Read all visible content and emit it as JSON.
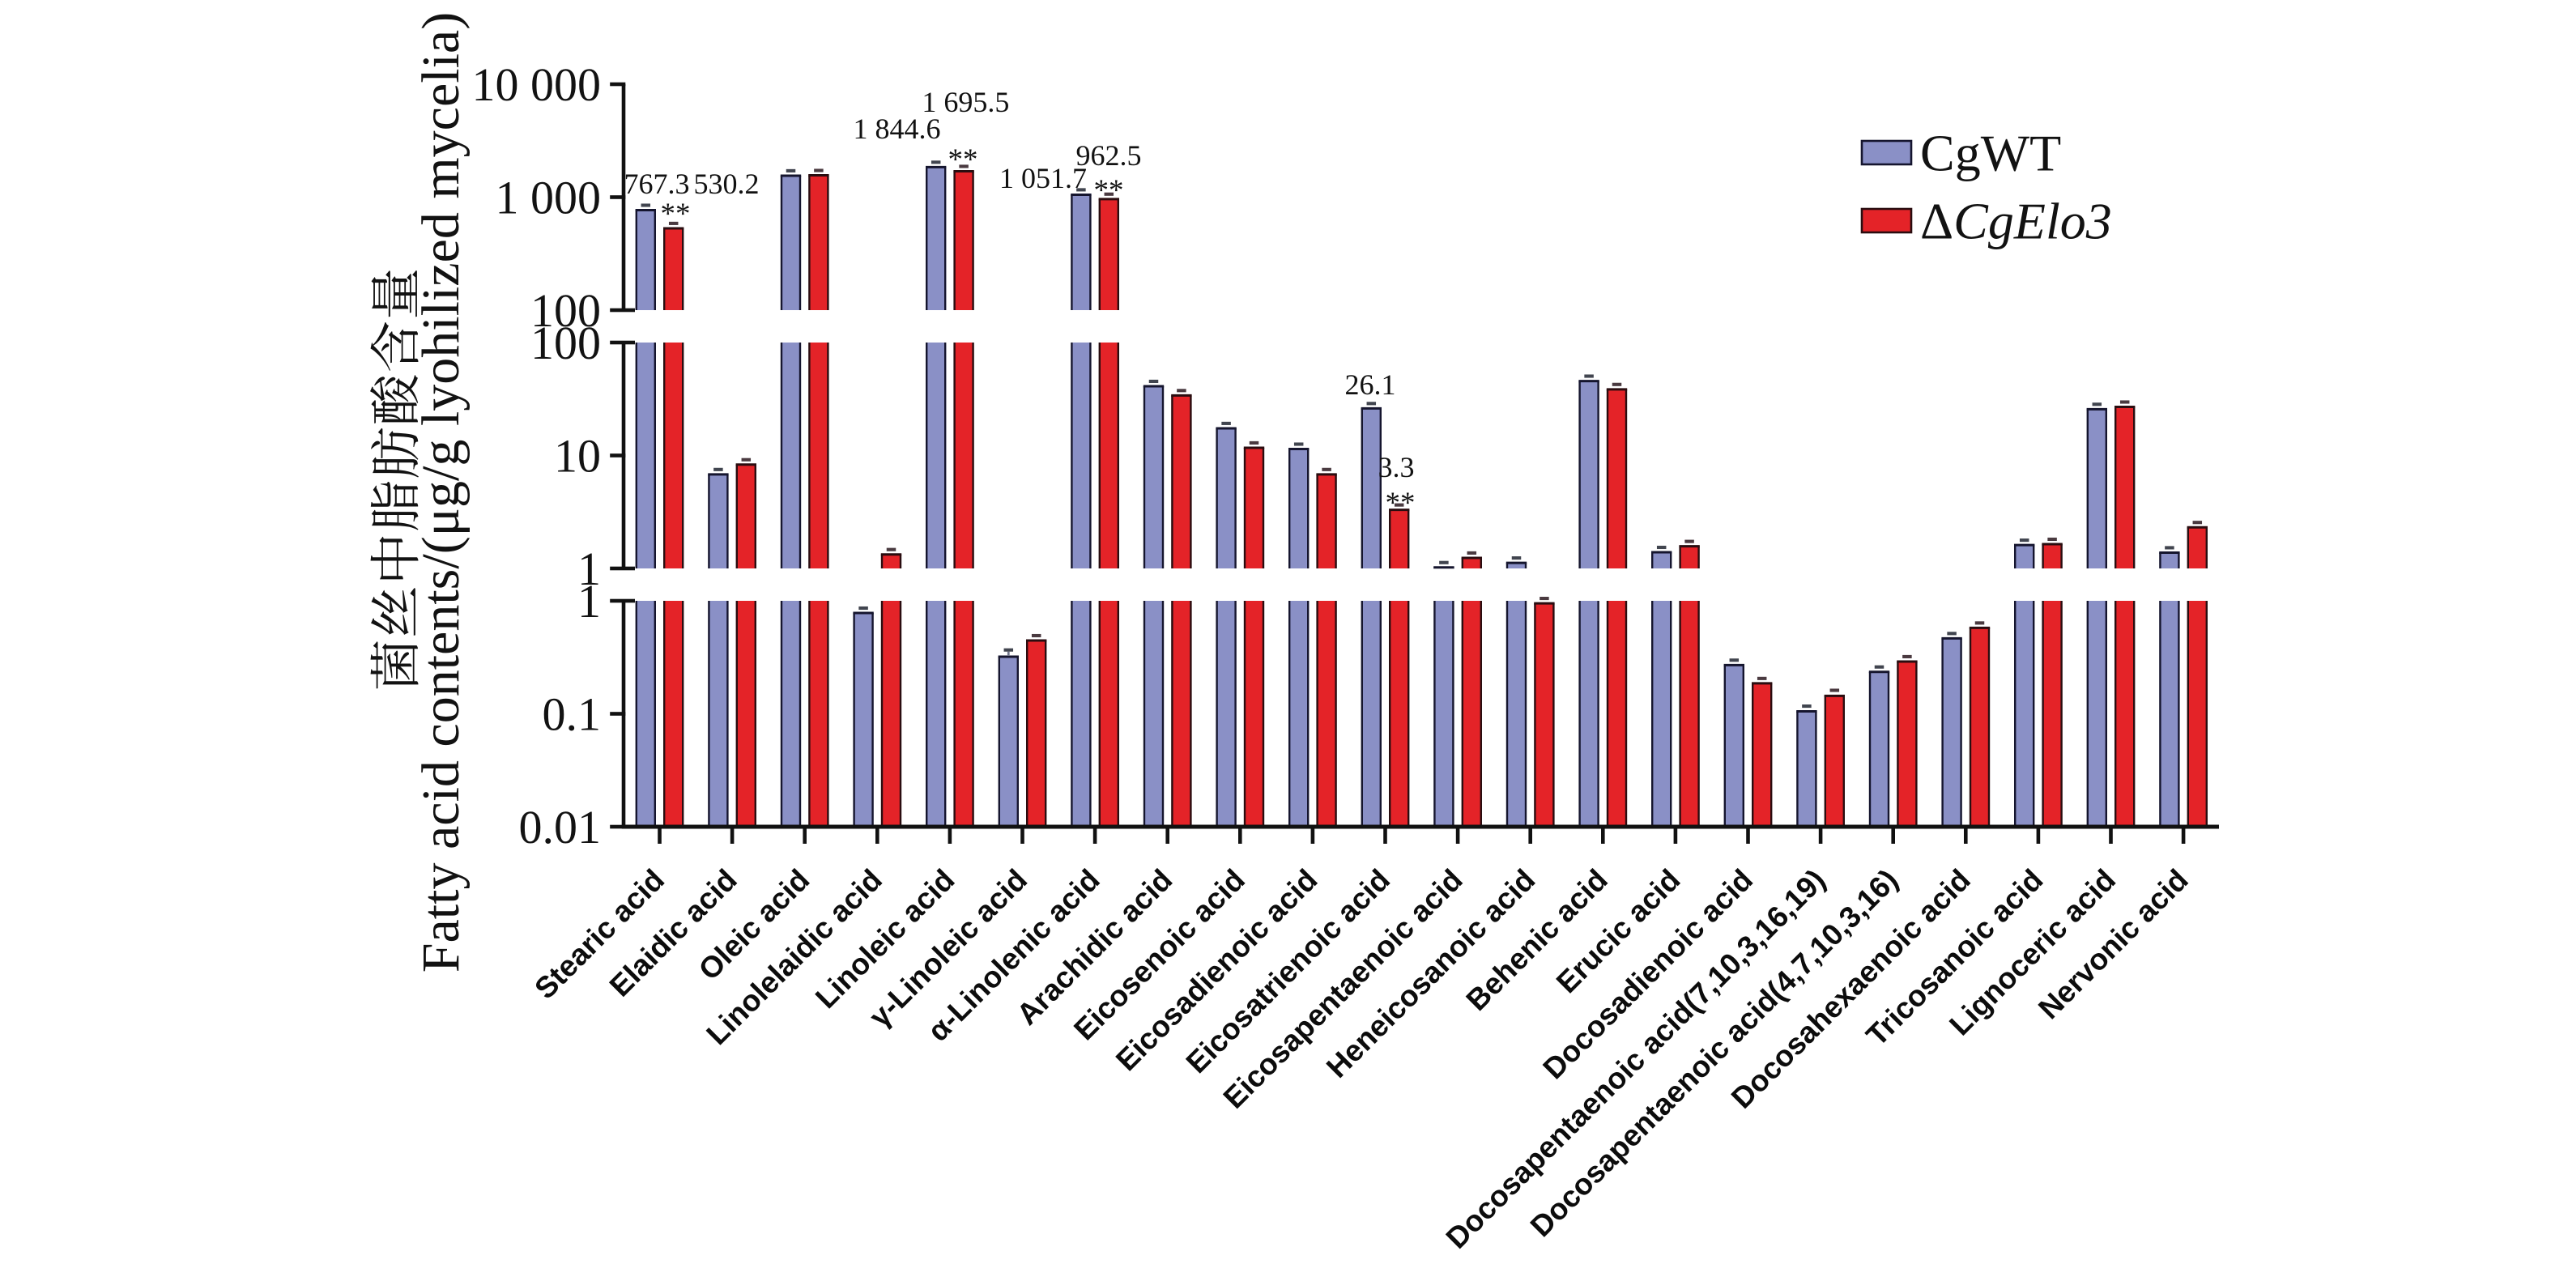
{
  "figure": {
    "background": "#ffffff",
    "ylabel_zh": "菌丝中脂肪酸含量",
    "ylabel_en": "Fatty acid contents/(μg/g lyohilized mycelia)",
    "legend": [
      {
        "label": "CgWT",
        "color": "#8a90c6",
        "border": "#15152e",
        "italic": false
      },
      {
        "label_prefix": "Δ",
        "label": "CgElo3",
        "color": "#e42328",
        "border": "#2a0d10",
        "italic": true
      }
    ]
  },
  "chart_data": {
    "type": "bar",
    "scale": "log-broken-axis",
    "title": "",
    "xlabel": "",
    "ylabel": "菌丝中脂肪酸含量 Fatty acid contents/(μg/g lyohilized mycelia)",
    "axis_segments": [
      {
        "min": 100,
        "max": 10000,
        "ticks": [
          "10 000",
          "1 000",
          "100"
        ]
      },
      {
        "min": 1,
        "max": 100,
        "ticks": [
          "100",
          "10",
          "1"
        ]
      },
      {
        "min": 0.01,
        "max": 1,
        "ticks": [
          "1",
          "0.1",
          "0.01"
        ]
      }
    ],
    "grid": false,
    "legend_position": "top-right",
    "categories": [
      "Stearic acid",
      "Elaidic acid",
      "Oleic acid",
      "Linolelaidic acid",
      "Linoleic acid",
      "γ-Linoleic acid",
      "α-Linolenic acid",
      "Arachidic acid",
      "Eicosenoic acid",
      "Eicosadienoic acid",
      "Eicosatrienoic acid",
      "Eicosapentaenoic acid",
      "Heneicosanoic acid",
      "Behenic acid",
      "Erucic acid",
      "Docosadienoic acid",
      "Docosapentaenoic acid(7,10,3,16,19)",
      "Docosapentaenoic acid(4,7,10,3,16)",
      "Docosahexaenoic acid",
      "Tricosanoic acid",
      "Lignoceric acid",
      "Nervonic acid"
    ],
    "series": [
      {
        "name": "CgWT",
        "color": "#8a90c6",
        "border": "#15152e",
        "values": [
          767.3,
          6.8,
          1550,
          0.78,
          1844.6,
          0.32,
          1051.7,
          41,
          17.4,
          11.4,
          26.1,
          1.02,
          1.12,
          45.6,
          1.39,
          0.27,
          0.105,
          0.235,
          0.465,
          1.61,
          25.7,
          1.38
        ],
        "errors": [
          12,
          0.15,
          10,
          0.02,
          20,
          0.035,
          10,
          0.9,
          0.5,
          0.25,
          0.6,
          0.03,
          0.03,
          1.2,
          0.05,
          0.012,
          0.008,
          0.014,
          0.012,
          0.09,
          0.5,
          0.05
        ]
      },
      {
        "name": "ΔCgElo3",
        "color": "#e42328",
        "border": "#2a0d10",
        "values": [
          530.2,
          8.3,
          1560,
          1.33,
          1695.5,
          0.445,
          962.5,
          34,
          11.7,
          6.8,
          3.3,
          1.24,
          0.95,
          38.5,
          1.57,
          0.186,
          0.144,
          0.29,
          0.576,
          1.64,
          26.9,
          2.31
        ],
        "errors": [
          8,
          0.12,
          10,
          0.05,
          15,
          0.015,
          8,
          1.6,
          0.25,
          0.15,
          0.12,
          0.08,
          0.03,
          1.2,
          0.07,
          0.01,
          0.012,
          0.015,
          0.02,
          0.1,
          0.6,
          0.12
        ]
      }
    ],
    "annotations": [
      {
        "category_index": 0,
        "wt_label": "767.3",
        "mut_label": "530.2",
        "sig": "**"
      },
      {
        "category_index": 4,
        "wt_label": "1 844.6",
        "mut_label": "1 695.5",
        "sig": "**"
      },
      {
        "category_index": 6,
        "wt_label": "1 051.7",
        "mut_label": "962.5",
        "sig": "**"
      },
      {
        "category_index": 10,
        "wt_label": "26.1",
        "mut_label": "3.3",
        "sig": "**"
      }
    ]
  }
}
